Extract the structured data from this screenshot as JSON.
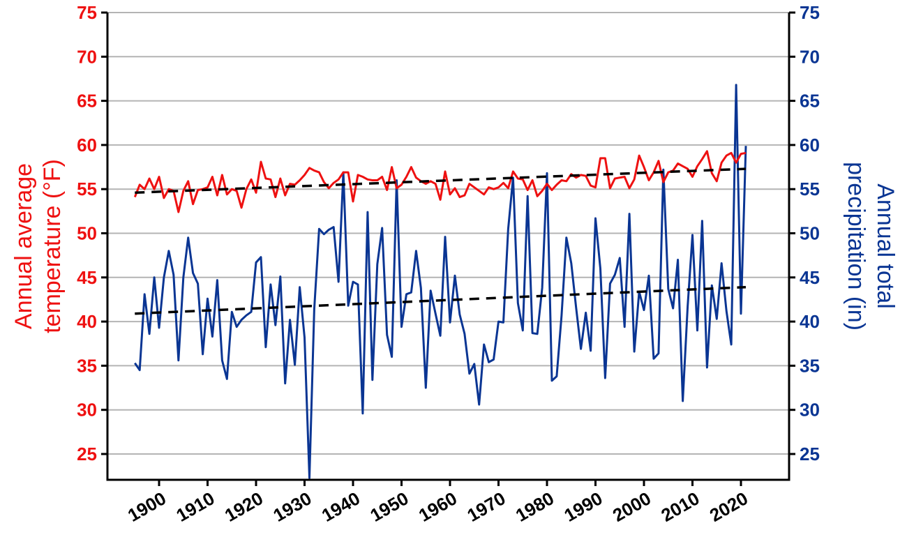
{
  "chart_data": {
    "type": "line",
    "title": "",
    "xlabel": "",
    "ylabel_left": "Annual average temperature (°F)",
    "ylabel_left_lines": [
      "Annual average",
      "temperature (°F)"
    ],
    "ylabel_right": "Annual total precipitation (in)",
    "ylabel_right_lines": [
      "Annual total",
      "precipitation (in)"
    ],
    "ylim": [
      22,
      75
    ],
    "y_ticks": [
      25,
      30,
      35,
      40,
      45,
      50,
      55,
      60,
      65,
      70,
      75
    ],
    "x_ticks": [
      1900,
      1910,
      1920,
      1930,
      1940,
      1950,
      1960,
      1970,
      1980,
      1990,
      2000,
      2010,
      2020
    ],
    "xlim": [
      1885,
      2040
    ],
    "grid": true,
    "legend": null,
    "colors": {
      "temperature": "#ee1111",
      "precipitation": "#0a3593",
      "trend": "#000000",
      "grid": "#b4b4b4",
      "axis": "#000000"
    },
    "x": [
      1895,
      1896,
      1897,
      1898,
      1899,
      1900,
      1901,
      1902,
      1903,
      1904,
      1905,
      1906,
      1907,
      1908,
      1909,
      1910,
      1911,
      1912,
      1913,
      1914,
      1915,
      1916,
      1917,
      1918,
      1919,
      1920,
      1921,
      1922,
      1923,
      1924,
      1925,
      1926,
      1927,
      1928,
      1929,
      1930,
      1931,
      1932,
      1933,
      1934,
      1935,
      1936,
      1937,
      1938,
      1939,
      1940,
      1941,
      1942,
      1943,
      1944,
      1945,
      1946,
      1947,
      1948,
      1949,
      1950,
      1951,
      1952,
      1953,
      1954,
      1955,
      1956,
      1957,
      1958,
      1959,
      1960,
      1961,
      1962,
      1963,
      1964,
      1965,
      1966,
      1967,
      1968,
      1969,
      1970,
      1971,
      1972,
      1973,
      1974,
      1975,
      1976,
      1977,
      1978,
      1979,
      1980,
      1981,
      1982,
      1983,
      1984,
      1985,
      1986,
      1987,
      1988,
      1989,
      1990,
      1991,
      1992,
      1993,
      1994,
      1995,
      1996,
      1997,
      1998,
      1999,
      2000,
      2001,
      2002,
      2003,
      2004,
      2005,
      2006,
      2007,
      2008,
      2009,
      2010,
      2011,
      2012,
      2013,
      2014,
      2015,
      2016,
      2017,
      2018,
      2019,
      2020,
      2021
    ],
    "series": [
      {
        "name": "Annual average temperature (°F)",
        "axis": "left",
        "values": [
          54.1,
          55.5,
          55.0,
          56.2,
          55.0,
          56.4,
          54.0,
          55.0,
          54.8,
          52.4,
          54.8,
          55.9,
          53.3,
          54.9,
          55.0,
          55.2,
          56.4,
          54.3,
          56.6,
          54.4,
          55.0,
          54.8,
          52.9,
          55.0,
          56.1,
          54.6,
          58.1,
          56.2,
          56.1,
          54.1,
          56.2,
          54.3,
          55.6,
          55.5,
          56.0,
          56.6,
          57.4,
          57.1,
          56.9,
          55.8,
          55.1,
          55.7,
          56.1,
          56.9,
          56.9,
          53.6,
          56.6,
          56.4,
          56.1,
          56.0,
          56.0,
          56.4,
          54.9,
          57.5,
          55.1,
          55.5,
          56.4,
          57.5,
          56.3,
          55.9,
          55.6,
          55.9,
          55.6,
          53.8,
          57.0,
          54.4,
          55.1,
          54.1,
          54.3,
          55.6,
          55.2,
          54.8,
          54.4,
          55.2,
          55.0,
          55.2,
          55.7,
          55.1,
          57.0,
          56.2,
          56.1,
          54.9,
          56.0,
          54.2,
          54.8,
          55.6,
          54.9,
          55.5,
          56.0,
          55.9,
          56.7,
          56.3,
          56.6,
          56.5,
          55.4,
          55.2,
          58.5,
          58.5,
          55.1,
          56.2,
          56.3,
          56.4,
          55.1,
          56.1,
          58.8,
          57.5,
          56.0,
          56.9,
          58.2,
          55.8,
          56.9,
          57.1,
          57.9,
          57.6,
          57.3,
          56.4,
          57.6,
          58.4,
          59.3,
          56.8,
          55.9,
          58.0,
          58.8,
          59.1,
          58.0,
          59.0,
          59.1,
          59.0
        ]
      },
      {
        "name": "Annual total precipitation (in)",
        "axis": "right",
        "values": [
          35.3,
          34.5,
          43.1,
          38.6,
          45.0,
          39.3,
          45.0,
          48.0,
          45.3,
          35.6,
          45.0,
          49.5,
          45.5,
          44.3,
          36.3,
          42.6,
          38.3,
          44.7,
          35.6,
          33.5,
          41.1,
          39.4,
          40.2,
          40.7,
          41.1,
          46.7,
          47.3,
          37.1,
          44.2,
          39.6,
          45.1,
          33.0,
          40.2,
          35.1,
          43.9,
          38.2,
          22.3,
          41.4,
          50.5,
          49.9,
          50.4,
          50.7,
          44.5,
          56.9,
          41.8,
          44.5,
          44.2,
          29.6,
          52.4,
          33.4,
          46.5,
          50.6,
          38.5,
          36.0,
          56.0,
          39.4,
          43.1,
          43.3,
          48.0,
          43.8,
          32.5,
          43.5,
          40.9,
          38.4,
          49.6,
          39.9,
          45.2,
          40.8,
          38.6,
          34.1,
          35.2,
          30.6,
          37.4,
          35.4,
          35.7,
          40.0,
          39.9,
          50.5,
          56.3,
          42.1,
          39.0,
          54.2,
          38.7,
          38.6,
          43.8,
          56.8,
          33.3,
          33.8,
          40.7,
          49.5,
          46.6,
          41.6,
          36.9,
          41.0,
          36.7,
          51.7,
          46.0,
          33.6,
          44.3,
          45.3,
          47.2,
          39.4,
          52.2,
          36.6,
          43.4,
          41.3,
          45.2,
          35.8,
          36.4,
          57.2,
          43.7,
          41.5,
          47.0,
          31.0,
          41.7,
          49.8,
          39.0,
          51.4,
          34.8,
          44.1,
          40.3,
          46.6,
          41.2,
          37.4,
          66.8,
          40.9,
          59.9,
          39.9
        ]
      },
      {
        "name": "Temperature trend",
        "axis": "left",
        "style": "dashed",
        "start": [
          1895,
          54.6
        ],
        "end": [
          2021,
          57.3
        ]
      },
      {
        "name": "Precipitation trend",
        "axis": "right",
        "style": "dashed",
        "start": [
          1895,
          40.9
        ],
        "end": [
          2021,
          43.9
        ]
      }
    ]
  }
}
